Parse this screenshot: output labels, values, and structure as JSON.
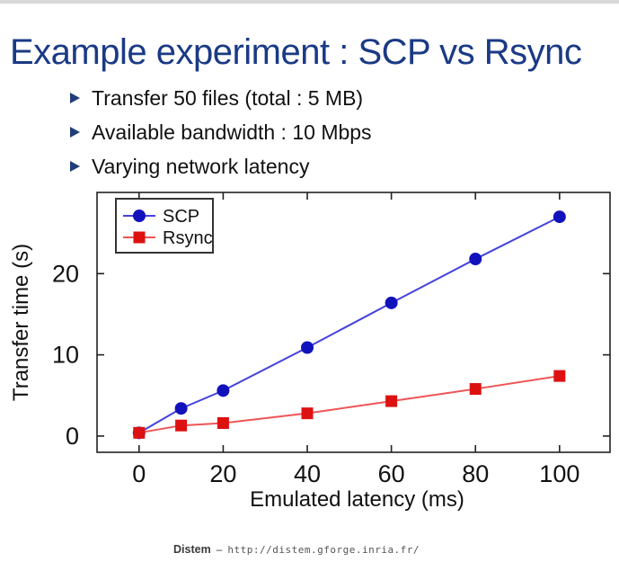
{
  "slide": {
    "title": "Example experiment : SCP vs Rsync",
    "bullets": [
      "Transfer 50 files (total : 5 MB)",
      "Available bandwidth : 10 Mbps",
      "Varying network latency"
    ],
    "footer": {
      "brand": "Distem",
      "separator": "–",
      "url": "http://distem.gforge.inria.fr/"
    }
  },
  "colors": {
    "title_blue": "#1a3a85",
    "bullet_navy": "#1f3d78",
    "scp_line": "#4343dd",
    "scp_marker": "#1212bd",
    "rsync_line": "#ee5555",
    "rsync_marker": "#dd1111",
    "axis": "#222222",
    "top_band": "#d8d8d8"
  },
  "chart_data": {
    "type": "line",
    "title": "",
    "xlabel": "Emulated latency (ms)",
    "ylabel": "Transfer time (s)",
    "x": [
      0,
      10,
      20,
      40,
      60,
      80,
      100
    ],
    "xticks": [
      0,
      20,
      40,
      60,
      80,
      100
    ],
    "yticks": [
      0,
      10,
      20
    ],
    "xlim": [
      -10,
      112
    ],
    "ylim": [
      -2,
      30
    ],
    "grid": false,
    "legend_position": "top-left",
    "series": [
      {
        "name": "SCP",
        "marker": "circle",
        "line_color": "#4343dd",
        "marker_color": "#1212bd",
        "values": [
          0.4,
          3.4,
          5.6,
          10.9,
          16.4,
          21.8,
          27.0
        ]
      },
      {
        "name": "Rsync",
        "marker": "square",
        "line_color": "#ee5555",
        "marker_color": "#dd1111",
        "values": [
          0.4,
          1.3,
          1.6,
          2.8,
          4.3,
          5.8,
          7.4
        ]
      }
    ]
  }
}
